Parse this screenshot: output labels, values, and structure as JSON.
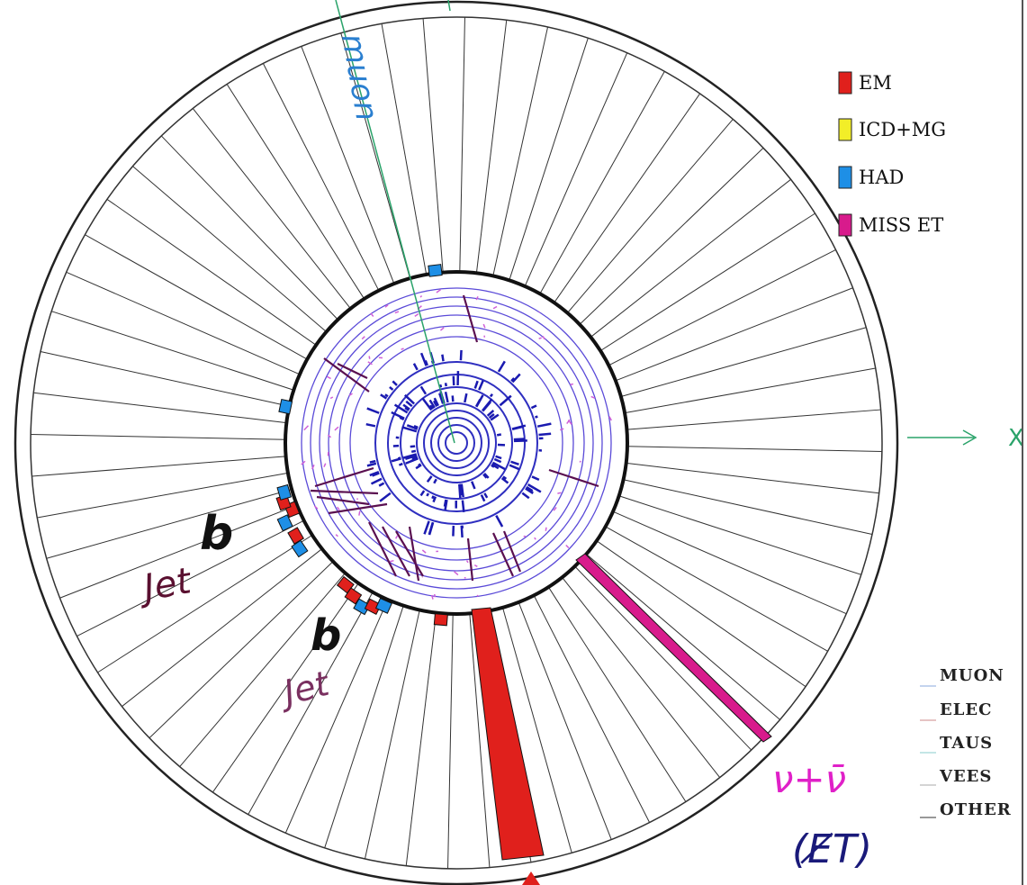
{
  "legend": [
    {
      "label": "EM",
      "color": "#e0201c"
    },
    {
      "label": "ICD+MG",
      "color": "#f2ee28"
    },
    {
      "label": "HAD",
      "color": "#1e8fe6"
    },
    {
      "label": "MISS ET",
      "color": "#d81b8c"
    }
  ],
  "side_labels": [
    "MUON",
    "ELEC",
    "TAUS",
    "VEES",
    "OTHER"
  ],
  "annotations": {
    "muon": "muon",
    "b_jet_1_b": "b",
    "b_jet_1_jet": "Jet",
    "b_jet_2_b": "b",
    "b_jet_2_jet": "Jet",
    "neutrino": "ν+ν̄",
    "missing_et": "(E̸T)",
    "x_axis": "X"
  },
  "colors": {
    "wedge_outline": "#222222",
    "track_circle": "#4a3fd8",
    "muon_track": "#2aa36a",
    "neutrino_text": "#e020c8",
    "et_text": "#1a1a7a",
    "jet_text": "#5a1030",
    "muon_text": "#2a7fd0"
  }
}
